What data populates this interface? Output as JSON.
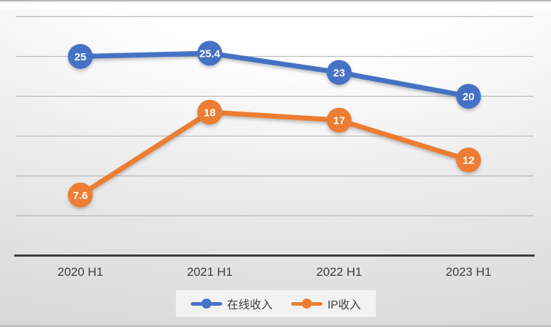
{
  "chart_data": {
    "type": "line",
    "title": "",
    "categories": [
      "2020 H1",
      "2021 H1",
      "2022 H1",
      "2023 H1"
    ],
    "series": [
      {
        "name": "在线收入",
        "color": "#4472c4",
        "values": [
          25,
          25.4,
          23,
          20
        ]
      },
      {
        "name": "IP收入",
        "color": "#ed7d31",
        "values": [
          7.6,
          18,
          17,
          12
        ]
      }
    ],
    "ylim": [
      0,
      30
    ],
    "grid_step": 5,
    "grid": true,
    "legend_position": "bottom",
    "data_labels": true
  },
  "colors": {
    "grid_line": "#b8b8b8",
    "axis_line": "#3a3a3a",
    "axis_label_text": "#3c3c3c",
    "data_label_text": "#ffffff",
    "legend_text": "#404040",
    "legend_background": "#f2f2f2"
  }
}
